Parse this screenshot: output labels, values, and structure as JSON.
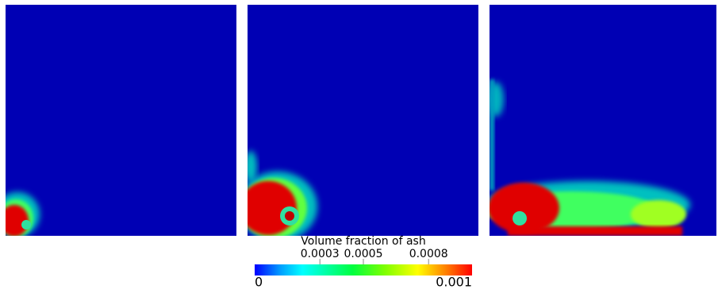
{
  "colorbar": {
    "title": "Volume fraction of ash",
    "min": 0,
    "max": 0.001,
    "ticks": [
      0.0003,
      0.0005,
      0.0008
    ]
  }
}
